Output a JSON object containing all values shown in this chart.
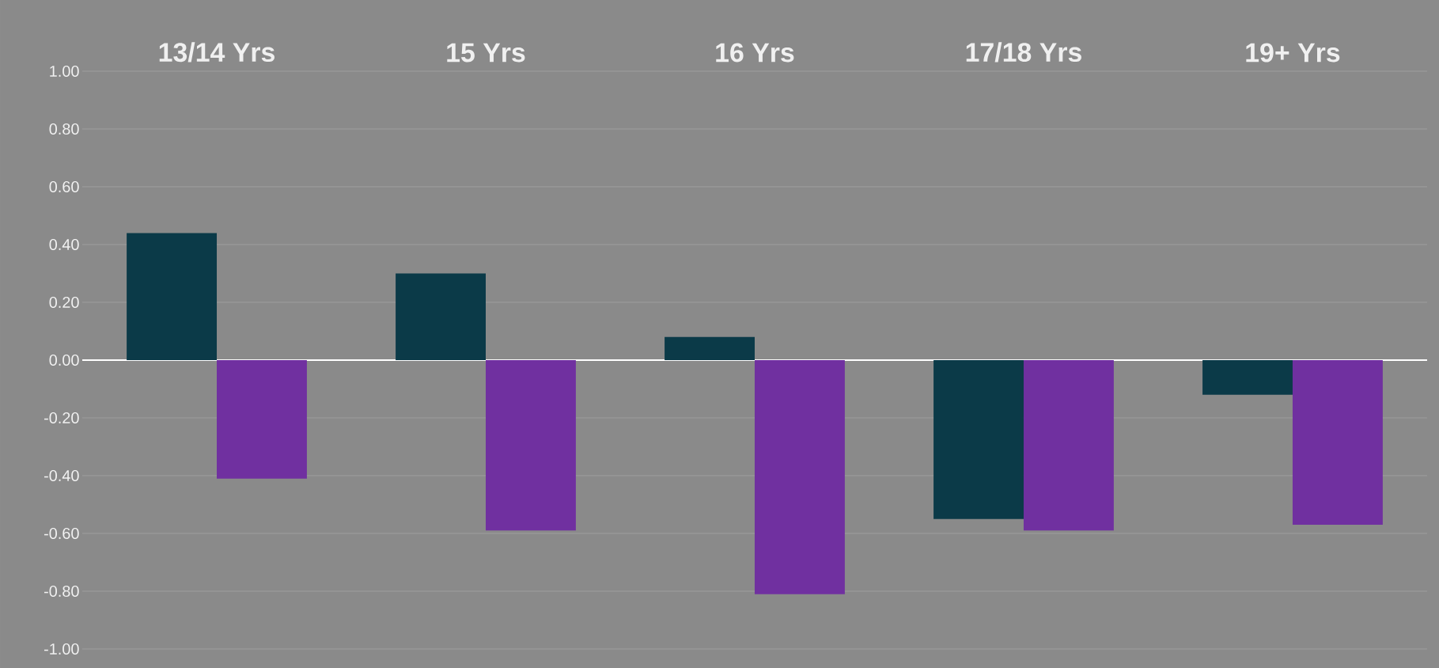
{
  "chart_data": {
    "type": "bar",
    "categories": [
      "13/14 Yrs",
      "15 Yrs",
      "16 Yrs",
      "17/18 Yrs",
      "19+ Yrs"
    ],
    "series": [
      {
        "color": "#0b3a48",
        "values": [
          0.44,
          0.3,
          0.08,
          -0.55,
          -0.12
        ]
      },
      {
        "color": "#7030a0",
        "values": [
          -0.41,
          -0.59,
          -0.81,
          -0.59,
          -0.57
        ]
      }
    ],
    "ylim": [
      -1,
      1
    ],
    "yticks": [
      {
        "value": -1,
        "label": "-1.00"
      },
      {
        "value": -0.8,
        "label": "-0.80"
      },
      {
        "value": -0.6,
        "label": "-0.60"
      },
      {
        "value": -0.4,
        "label": "-0.40"
      },
      {
        "value": -0.2,
        "label": "-0.20"
      },
      {
        "value": 0,
        "label": "0.00"
      },
      {
        "value": 0.2,
        "label": "0.20"
      },
      {
        "value": 0.4,
        "label": "0.40"
      },
      {
        "value": 0.6,
        "label": "0.60"
      },
      {
        "value": 0.8,
        "label": "0.80"
      },
      {
        "value": 1,
        "label": "1.00"
      }
    ],
    "grid": "y"
  }
}
